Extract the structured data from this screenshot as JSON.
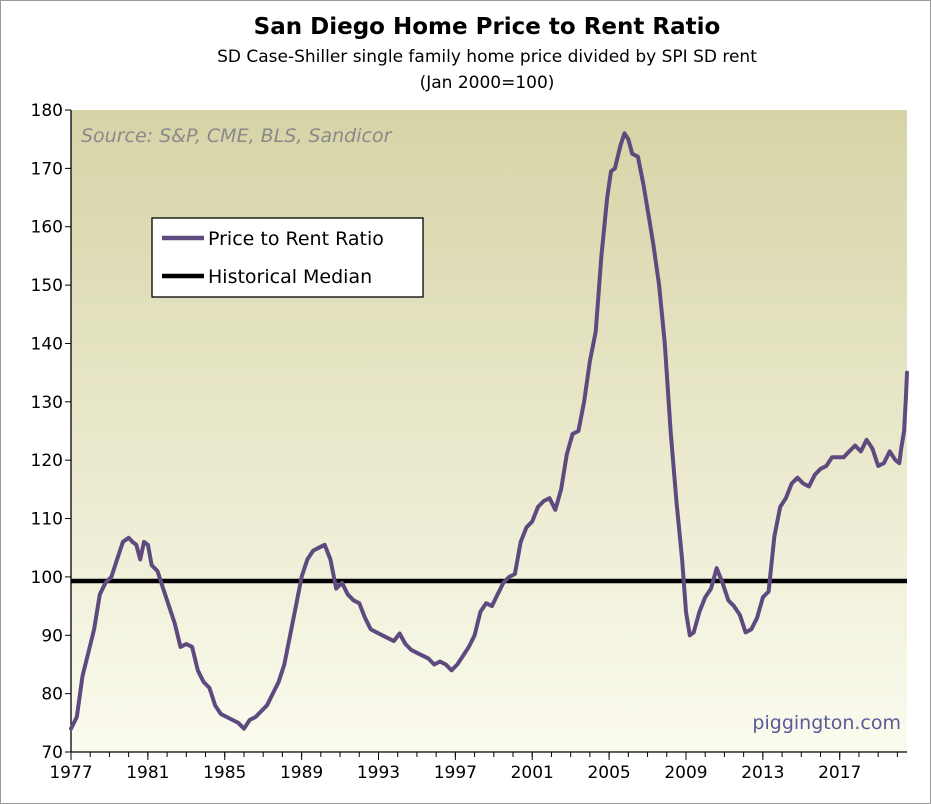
{
  "chart_data": {
    "type": "line",
    "title": "San Diego Home Price to Rent Ratio",
    "subtitle_line1": "SD Case-Shiller single family home price divided by SPI SD rent",
    "subtitle_line2": "(Jan 2000=100)",
    "source": "Source: S&P, CME, BLS, Sandicor",
    "watermark": "piggington.com",
    "xlabel": "",
    "ylabel": "",
    "xlim": [
      1977,
      2020.5
    ],
    "ylim": [
      70,
      180
    ],
    "x_ticks": [
      "1977",
      "1981",
      "1985",
      "1989",
      "1993",
      "1997",
      "2001",
      "2005",
      "2009",
      "2013",
      "2017"
    ],
    "y_ticks": [
      "70",
      "80",
      "90",
      "100",
      "110",
      "120",
      "130",
      "140",
      "150",
      "160",
      "170",
      "180"
    ],
    "legend": [
      {
        "label": "Price to Rent Ratio",
        "color": "#5e4a7e"
      },
      {
        "label": "Historical Median",
        "color": "#000000"
      }
    ],
    "median": 99.3,
    "series": [
      {
        "name": "Price to Rent Ratio",
        "color": "#5e4a7e",
        "points": [
          [
            1977.0,
            74
          ],
          [
            1977.3,
            76
          ],
          [
            1977.6,
            83
          ],
          [
            1977.9,
            87
          ],
          [
            1978.2,
            91
          ],
          [
            1978.5,
            97
          ],
          [
            1978.8,
            99
          ],
          [
            1979.1,
            100
          ],
          [
            1979.4,
            103
          ],
          [
            1979.7,
            106
          ],
          [
            1980.0,
            106.7
          ],
          [
            1980.2,
            106
          ],
          [
            1980.4,
            105.5
          ],
          [
            1980.6,
            103
          ],
          [
            1980.8,
            106
          ],
          [
            1981.0,
            105.5
          ],
          [
            1981.2,
            102
          ],
          [
            1981.5,
            101
          ],
          [
            1981.8,
            98
          ],
          [
            1982.1,
            95
          ],
          [
            1982.4,
            92
          ],
          [
            1982.7,
            88
          ],
          [
            1983.0,
            88.5
          ],
          [
            1983.3,
            88
          ],
          [
            1983.6,
            84
          ],
          [
            1983.9,
            82
          ],
          [
            1984.2,
            81
          ],
          [
            1984.5,
            78
          ],
          [
            1984.8,
            76.5
          ],
          [
            1985.1,
            76
          ],
          [
            1985.4,
            75.5
          ],
          [
            1985.7,
            75
          ],
          [
            1986.0,
            74
          ],
          [
            1986.3,
            75.5
          ],
          [
            1986.6,
            76
          ],
          [
            1986.9,
            77
          ],
          [
            1987.2,
            78
          ],
          [
            1987.5,
            80
          ],
          [
            1987.8,
            82
          ],
          [
            1988.1,
            85
          ],
          [
            1988.4,
            90
          ],
          [
            1988.7,
            95
          ],
          [
            1989.0,
            100
          ],
          [
            1989.3,
            103
          ],
          [
            1989.6,
            104.5
          ],
          [
            1989.9,
            105
          ],
          [
            1990.2,
            105.5
          ],
          [
            1990.5,
            103
          ],
          [
            1990.8,
            98
          ],
          [
            1991.1,
            99
          ],
          [
            1991.4,
            97
          ],
          [
            1991.7,
            96
          ],
          [
            1992.0,
            95.5
          ],
          [
            1992.3,
            93
          ],
          [
            1992.6,
            91
          ],
          [
            1992.9,
            90.5
          ],
          [
            1993.2,
            90
          ],
          [
            1993.5,
            89.5
          ],
          [
            1993.8,
            89
          ],
          [
            1994.1,
            90.3
          ],
          [
            1994.4,
            88.5
          ],
          [
            1994.7,
            87.5
          ],
          [
            1995.0,
            87
          ],
          [
            1995.3,
            86.5
          ],
          [
            1995.6,
            86
          ],
          [
            1995.9,
            85
          ],
          [
            1996.2,
            85.5
          ],
          [
            1996.5,
            85
          ],
          [
            1996.8,
            84
          ],
          [
            1997.1,
            85
          ],
          [
            1997.4,
            86.5
          ],
          [
            1997.7,
            88
          ],
          [
            1998.0,
            90
          ],
          [
            1998.3,
            94
          ],
          [
            1998.6,
            95.5
          ],
          [
            1998.9,
            95
          ],
          [
            1999.2,
            97
          ],
          [
            1999.5,
            99
          ],
          [
            1999.8,
            100
          ],
          [
            2000.1,
            100.5
          ],
          [
            2000.4,
            106
          ],
          [
            2000.7,
            108.5
          ],
          [
            2001.0,
            109.5
          ],
          [
            2001.3,
            112
          ],
          [
            2001.6,
            113
          ],
          [
            2001.9,
            113.5
          ],
          [
            2002.2,
            111.5
          ],
          [
            2002.5,
            115
          ],
          [
            2002.8,
            121
          ],
          [
            2003.1,
            124.5
          ],
          [
            2003.4,
            125
          ],
          [
            2003.7,
            130
          ],
          [
            2004.0,
            137
          ],
          [
            2004.3,
            142
          ],
          [
            2004.6,
            155
          ],
          [
            2004.9,
            165
          ],
          [
            2005.1,
            169.5
          ],
          [
            2005.3,
            170
          ],
          [
            2005.6,
            174
          ],
          [
            2005.8,
            176
          ],
          [
            2006.0,
            175
          ],
          [
            2006.2,
            172.5
          ],
          [
            2006.5,
            172
          ],
          [
            2006.8,
            167
          ],
          [
            2007.1,
            161
          ],
          [
            2007.3,
            157
          ],
          [
            2007.6,
            150
          ],
          [
            2007.9,
            140
          ],
          [
            2008.2,
            125
          ],
          [
            2008.5,
            113
          ],
          [
            2008.8,
            103
          ],
          [
            2009.0,
            94
          ],
          [
            2009.2,
            90
          ],
          [
            2009.4,
            90.5
          ],
          [
            2009.7,
            94
          ],
          [
            2010.0,
            96.5
          ],
          [
            2010.3,
            98
          ],
          [
            2010.6,
            101.5
          ],
          [
            2010.9,
            99
          ],
          [
            2011.2,
            96
          ],
          [
            2011.5,
            95
          ],
          [
            2011.8,
            93.5
          ],
          [
            2012.1,
            90.5
          ],
          [
            2012.4,
            91
          ],
          [
            2012.7,
            93
          ],
          [
            2013.0,
            96.5
          ],
          [
            2013.3,
            97.5
          ],
          [
            2013.6,
            107
          ],
          [
            2013.9,
            112
          ],
          [
            2014.2,
            113.5
          ],
          [
            2014.5,
            116
          ],
          [
            2014.8,
            117
          ],
          [
            2015.1,
            116
          ],
          [
            2015.4,
            115.5
          ],
          [
            2015.7,
            117.5
          ],
          [
            2016.0,
            118.5
          ],
          [
            2016.3,
            119
          ],
          [
            2016.6,
            120.5
          ],
          [
            2016.9,
            120.5
          ],
          [
            2017.2,
            120.5
          ],
          [
            2017.5,
            121.5
          ],
          [
            2017.8,
            122.5
          ],
          [
            2018.1,
            121.5
          ],
          [
            2018.4,
            123.5
          ],
          [
            2018.7,
            122
          ],
          [
            2019.0,
            119
          ],
          [
            2019.3,
            119.5
          ],
          [
            2019.6,
            121.5
          ],
          [
            2019.9,
            120
          ],
          [
            2020.1,
            119.5
          ],
          [
            2020.2,
            122
          ],
          [
            2020.35,
            125
          ],
          [
            2020.45,
            131
          ],
          [
            2020.5,
            135
          ]
        ]
      }
    ]
  }
}
